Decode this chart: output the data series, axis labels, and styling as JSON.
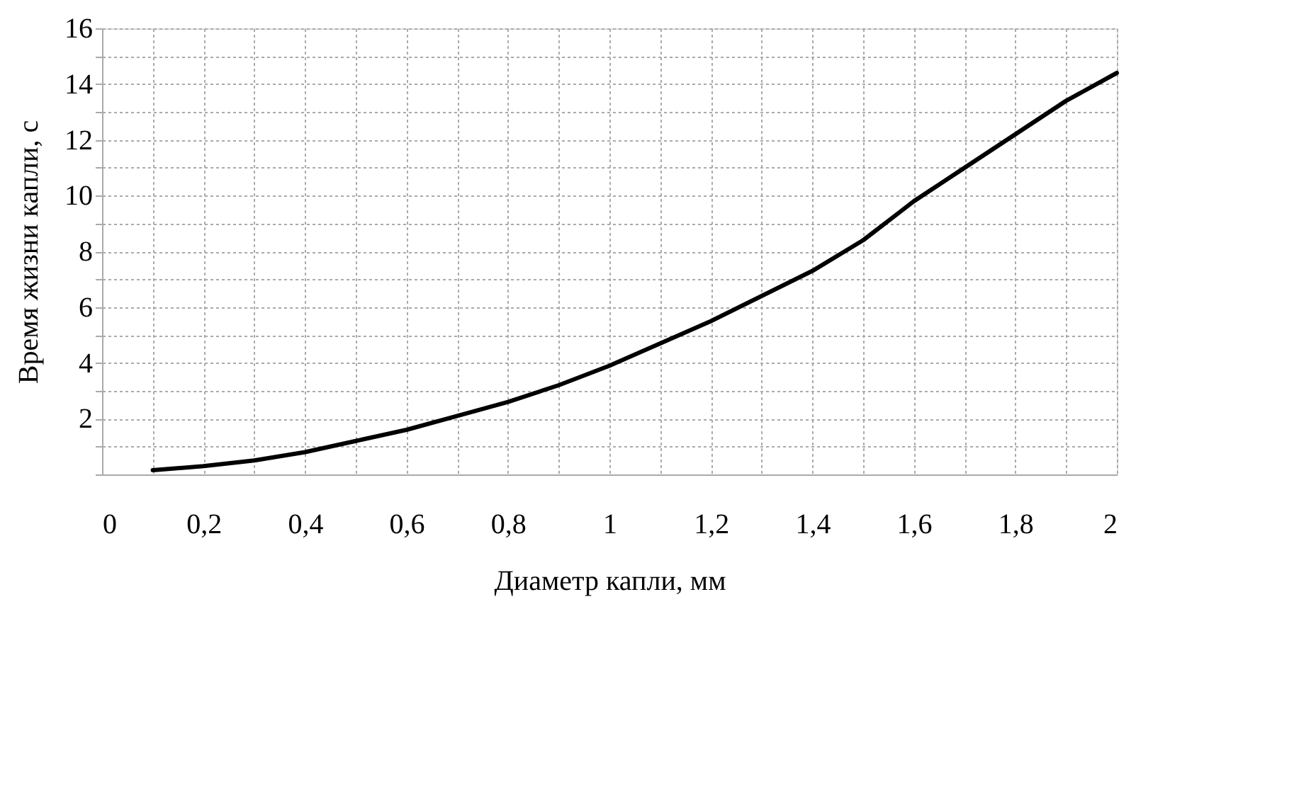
{
  "chart_data": {
    "type": "line",
    "xlabel": "Диаметр капли, мм",
    "ylabel": "Время жизни капли, с",
    "x": [
      0.1,
      0.2,
      0.3,
      0.4,
      0.5,
      0.6,
      0.7,
      0.8,
      0.9,
      1.0,
      1.1,
      1.2,
      1.3,
      1.4,
      1.5,
      1.6,
      1.7,
      1.8,
      1.9,
      2.0
    ],
    "series": [
      {
        "color": "#000000",
        "values": [
          0.15,
          0.3,
          0.5,
          0.8,
          1.2,
          1.6,
          2.1,
          2.6,
          3.2,
          3.9,
          4.7,
          5.5,
          6.4,
          7.3,
          8.4,
          9.8,
          11.0,
          12.2,
          13.4,
          14.4
        ]
      }
    ],
    "xlim": [
      0,
      2
    ],
    "xticks": [
      0,
      {
        "value": 0.1,
        "label": null
      },
      "0,2",
      {
        "value": 0.3,
        "label": null
      },
      "0,4",
      {
        "value": 0.5,
        "label": null
      },
      "0,6",
      {
        "value": 0.7,
        "label": null
      },
      "0,8",
      {
        "value": 0.9,
        "label": null
      },
      1,
      {
        "value": 1.1,
        "label": null
      },
      "1,2",
      {
        "value": 1.3,
        "label": null
      },
      "1,4",
      {
        "value": 1.5,
        "label": null
      },
      "1,6",
      {
        "value": 1.7,
        "label": null
      },
      "1,8",
      {
        "value": 1.9,
        "label": null
      },
      2
    ],
    "ylim": [
      0,
      16
    ],
    "yticks": [
      {
        "value": 0,
        "label": null
      },
      {
        "value": 1,
        "label": null
      },
      2,
      {
        "value": 3,
        "label": null
      },
      4,
      {
        "value": 5,
        "label": null
      },
      6,
      {
        "value": 7,
        "label": null
      },
      8,
      {
        "value": 9,
        "label": null
      },
      10,
      {
        "value": 11,
        "label": null
      },
      12,
      {
        "value": 13,
        "label": null
      },
      14,
      {
        "value": 15,
        "label": null
      },
      16
    ],
    "grid": true,
    "legend": false,
    "marker": "none",
    "line_style": "solid"
  }
}
